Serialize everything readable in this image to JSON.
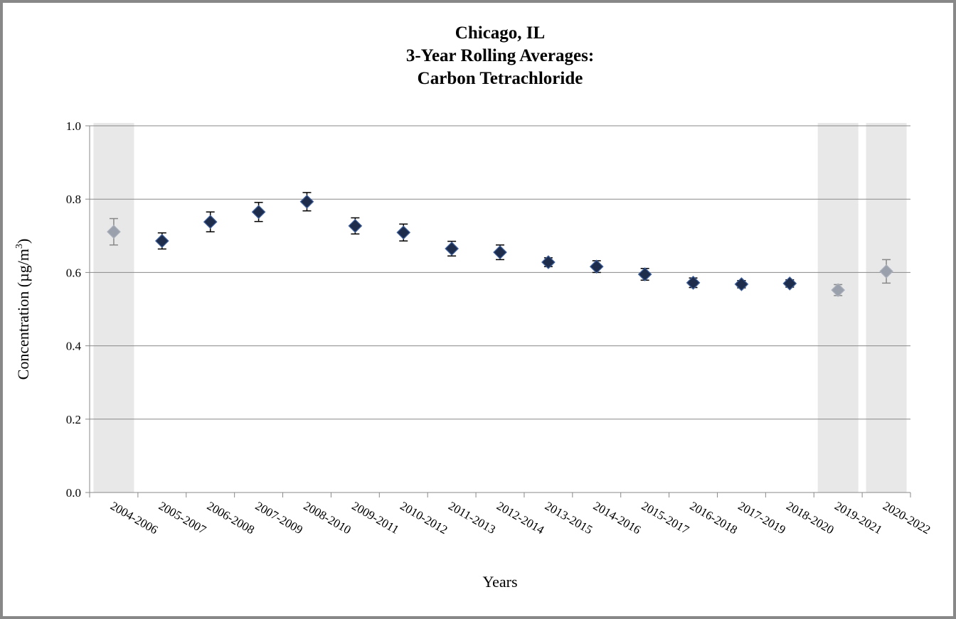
{
  "chart_data": {
    "type": "scatter",
    "title": [
      "Chicago, IL",
      "3-Year Rolling Averages:",
      "Carbon Tetrachloride"
    ],
    "x_label": "Years",
    "y_label": {
      "text": "Concentration (µg/m",
      "superscript": "3",
      "end": ")"
    },
    "categories": [
      "2004-2006",
      "2005-2007",
      "2006-2008",
      "2007-2009",
      "2008-2010",
      "2009-2011",
      "2010-2012",
      "2011-2013",
      "2012-2014",
      "2013-2015",
      "2014-2016",
      "2015-2017",
      "2016-2018",
      "2017-2019",
      "2018-2020",
      "2019-2021",
      "2020-2022"
    ],
    "values": [
      0.711,
      0.686,
      0.738,
      0.765,
      0.793,
      0.727,
      0.709,
      0.665,
      0.655,
      0.628,
      0.616,
      0.595,
      0.572,
      0.568,
      0.57,
      0.552,
      0.603
    ],
    "errors": [
      0.036,
      0.022,
      0.027,
      0.026,
      0.025,
      0.022,
      0.023,
      0.02,
      0.02,
      0.012,
      0.016,
      0.016,
      0.013,
      0.01,
      0.01,
      0.015,
      0.032
    ],
    "color": "#1f2d4d",
    "marker_colors": [
      "#9aa1ad",
      "#1f2d4d",
      "#1f2d4d",
      "#1f2d4d",
      "#1f2d4d",
      "#1f2d4d",
      "#1f2d4d",
      "#1f2d4d",
      "#1f2d4d",
      "#1f2d4d",
      "#1f2d4d",
      "#1f2d4d",
      "#1f2d4d",
      "#1f2d4d",
      "#1f2d4d",
      "#9aa1ad",
      "#9aa1ad"
    ],
    "shade_color": "#e8e8e8",
    "ylim": [
      0,
      1
    ],
    "yticks": [
      {
        "value": 0,
        "label": "0.0"
      },
      0.2,
      0.4,
      0.6,
      0.8,
      {
        "value": 1,
        "label": "1.0"
      }
    ],
    "grid": true
  }
}
